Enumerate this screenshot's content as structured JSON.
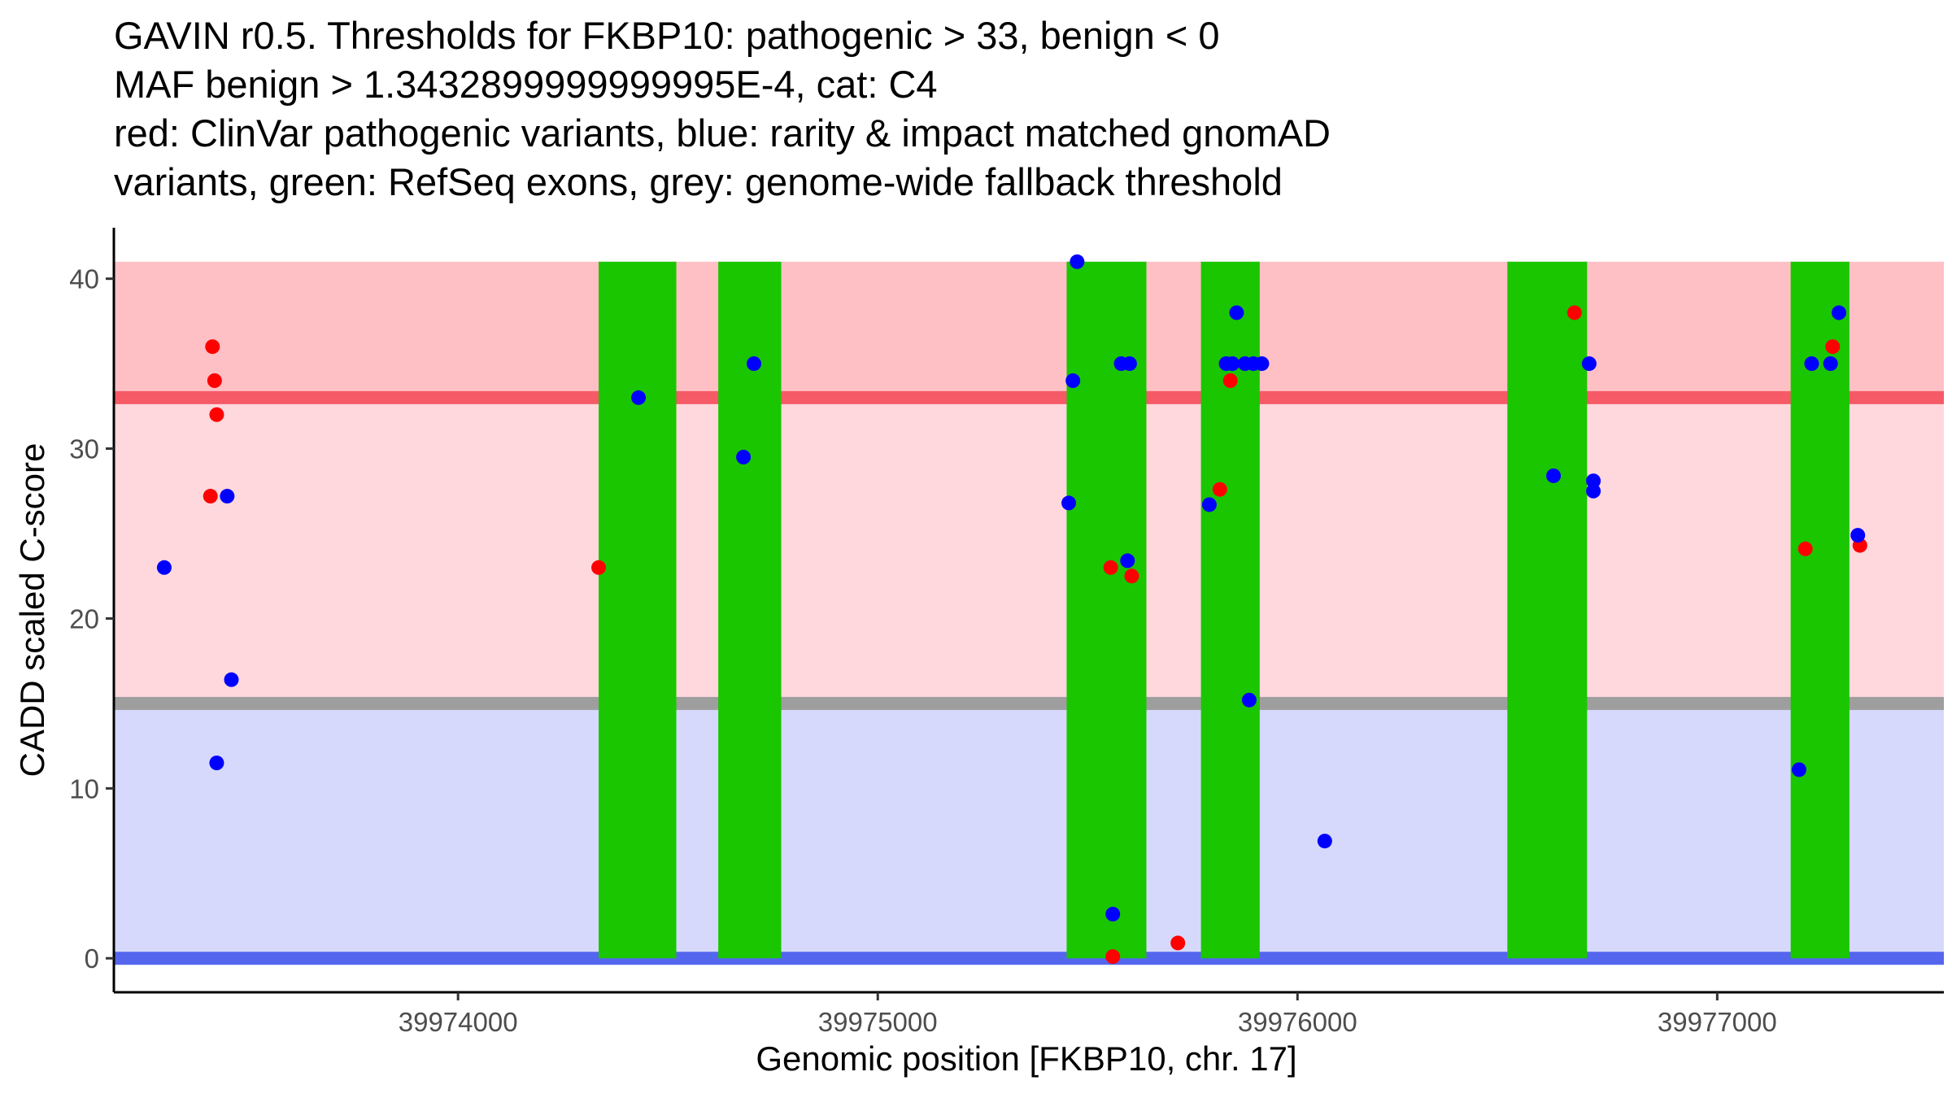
{
  "chart_data": {
    "type": "scatter",
    "title_lines": [
      "GAVIN r0.5. Thresholds for FKBP10: pathogenic > 33, benign < 0",
      "MAF benign > 1.3432899999999995E-4, cat: C4",
      "red: ClinVar pathogenic variants, blue: rarity & impact matched gnomAD",
      "variants, green: RefSeq exons, grey: genome-wide fallback threshold"
    ],
    "xlabel": "Genomic position [FKBP10, chr. 17]",
    "ylabel": "CADD scaled C-score",
    "xlim": [
      39973180,
      39977540
    ],
    "ylim": [
      -2,
      43
    ],
    "x_ticks": [
      39974000,
      39975000,
      39976000,
      39977000
    ],
    "x_tick_labels": [
      "39974000",
      "39975000",
      "39976000",
      "39977000"
    ],
    "y_ticks": [
      0,
      10,
      20,
      30,
      40
    ],
    "y_tick_labels": [
      "0",
      "10",
      "20",
      "30",
      "40"
    ],
    "threshold_bands": [
      {
        "name": "pathogenic-region",
        "y0": 33,
        "y1": 41,
        "color": "#ffc0c5"
      },
      {
        "name": "fallback-pathogenic-region",
        "y0": 15,
        "y1": 33,
        "color": "#ffd8dd"
      },
      {
        "name": "benign-region",
        "y0": 0,
        "y1": 15,
        "color": "#d6d9fc"
      }
    ],
    "threshold_lines": [
      {
        "name": "pathogenic-threshold-line",
        "y": 33,
        "color": "#f55a66"
      },
      {
        "name": "fallback-threshold-line",
        "y": 15,
        "color": "#9e9e9e"
      },
      {
        "name": "benign-threshold-line",
        "y": 0,
        "color": "#5566ee"
      }
    ],
    "exons": [
      {
        "start": 39974335,
        "end": 39974520,
        "ymax": 41
      },
      {
        "start": 39974620,
        "end": 39974770,
        "ymax": 41
      },
      {
        "start": 39975450,
        "end": 39975640,
        "ymax": 41
      },
      {
        "start": 39975770,
        "end": 39975910,
        "ymax": 41
      },
      {
        "start": 39976500,
        "end": 39976690,
        "ymax": 41
      },
      {
        "start": 39977175,
        "end": 39977315,
        "ymax": 41
      }
    ],
    "exon_color": "#1ac600",
    "series": [
      {
        "name": "ClinVar pathogenic",
        "color": "#ff0000",
        "points": [
          [
            39973415,
            36
          ],
          [
            39973420,
            34
          ],
          [
            39973425,
            32
          ],
          [
            39973410,
            27.2
          ],
          [
            39974335,
            23
          ],
          [
            39975555,
            23
          ],
          [
            39975605,
            22.5
          ],
          [
            39975560,
            0.1
          ],
          [
            39975715,
            0.9
          ],
          [
            39975815,
            27.6
          ],
          [
            39975840,
            34
          ],
          [
            39976660,
            38
          ],
          [
            39977210,
            24.1
          ],
          [
            39977275,
            36
          ],
          [
            39977340,
            24.3
          ]
        ]
      },
      {
        "name": "gnomAD matched",
        "color": "#0000ff",
        "points": [
          [
            39973300,
            23
          ],
          [
            39973450,
            27.2
          ],
          [
            39973460,
            16.4
          ],
          [
            39973425,
            11.5
          ],
          [
            39974430,
            33
          ],
          [
            39974680,
            29.5
          ],
          [
            39974705,
            35
          ],
          [
            39975475,
            41
          ],
          [
            39975465,
            34
          ],
          [
            39975455,
            26.8
          ],
          [
            39975580,
            35
          ],
          [
            39975600,
            35
          ],
          [
            39975595,
            23.4
          ],
          [
            39975560,
            2.6
          ],
          [
            39975790,
            26.7
          ],
          [
            39975830,
            35
          ],
          [
            39975845,
            35
          ],
          [
            39975855,
            38
          ],
          [
            39975875,
            35
          ],
          [
            39975895,
            35
          ],
          [
            39975915,
            35
          ],
          [
            39975885,
            15.2
          ],
          [
            39976065,
            6.9
          ],
          [
            39976610,
            28.4
          ],
          [
            39976695,
            35
          ],
          [
            39976705,
            28.1
          ],
          [
            39976705,
            27.5
          ],
          [
            39977195,
            11.1
          ],
          [
            39977225,
            35
          ],
          [
            39977270,
            35
          ],
          [
            39977290,
            38
          ],
          [
            39977335,
            24.9
          ]
        ]
      }
    ]
  }
}
